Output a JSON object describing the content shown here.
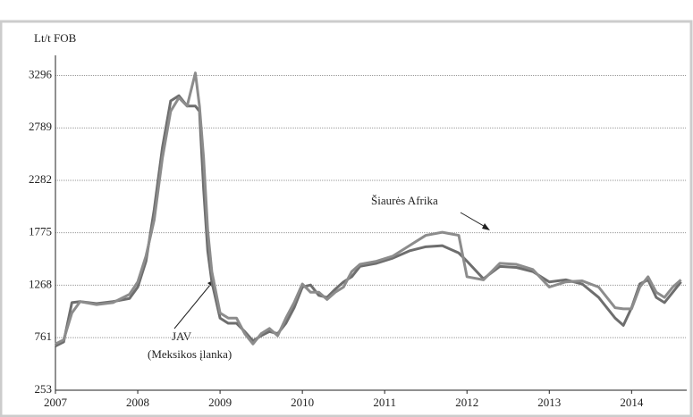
{
  "chart_data": {
    "type": "line",
    "y_label": "Lt/t FOB",
    "x": [
      2007.0,
      2007.1,
      2007.2,
      2007.3,
      2007.5,
      2007.7,
      2007.9,
      2008.0,
      2008.1,
      2008.2,
      2008.3,
      2008.4,
      2008.5,
      2008.6,
      2008.7,
      2008.75,
      2008.8,
      2008.85,
      2008.9,
      2009.0,
      2009.1,
      2009.2,
      2009.3,
      2009.4,
      2009.5,
      2009.6,
      2009.7,
      2009.8,
      2009.9,
      2010.0,
      2010.1,
      2010.2,
      2010.3,
      2010.4,
      2010.5,
      2010.6,
      2010.7,
      2010.9,
      2011.1,
      2011.3,
      2011.5,
      2011.7,
      2011.9,
      2012.0,
      2012.2,
      2012.4,
      2012.6,
      2012.8,
      2013.0,
      2013.2,
      2013.4,
      2013.6,
      2013.8,
      2013.9,
      2014.0,
      2014.1,
      2014.2,
      2014.3,
      2014.4,
      2014.5,
      2014.6
    ],
    "series": [
      {
        "color": "#6e6e6e",
        "values": [
          680,
          720,
          1100,
          1110,
          1090,
          1110,
          1140,
          1250,
          1500,
          2000,
          2600,
          3050,
          3100,
          3000,
          3000,
          2950,
          2200,
          1600,
          1300,
          950,
          900,
          900,
          820,
          730,
          780,
          820,
          800,
          900,
          1050,
          1250,
          1270,
          1170,
          1150,
          1230,
          1300,
          1350,
          1450,
          1480,
          1530,
          1600,
          1640,
          1650,
          1580,
          1500,
          1330,
          1450,
          1440,
          1400,
          1300,
          1320,
          1280,
          1150,
          950,
          880,
          1050,
          1280,
          1320,
          1150,
          1100,
          1200,
          1300
        ]
      },
      {
        "color": "#8c8c8c",
        "values": [
          700,
          740,
          1000,
          1110,
          1080,
          1100,
          1180,
          1300,
          1550,
          1900,
          2500,
          2950,
          3080,
          3000,
          3320,
          3000,
          2500,
          1800,
          1400,
          1000,
          950,
          950,
          800,
          700,
          800,
          850,
          780,
          950,
          1100,
          1280,
          1200,
          1200,
          1130,
          1200,
          1250,
          1400,
          1470,
          1500,
          1550,
          1650,
          1750,
          1780,
          1750,
          1350,
          1320,
          1480,
          1470,
          1420,
          1250,
          1300,
          1310,
          1250,
          1050,
          1040,
          1040,
          1250,
          1350,
          1200,
          1150,
          1250,
          1320
        ]
      }
    ],
    "annotations": [
      "JAV",
      "(Meksikos įlanka)",
      "Šiaurės Afrika"
    ],
    "xlim": [
      2007,
      2014.67
    ],
    "xticks": [
      2007,
      2008,
      2009,
      2010,
      2011,
      2012,
      2013,
      2014
    ],
    "ylim": [
      253,
      3490
    ],
    "yticks": [
      253,
      761,
      1268,
      1775,
      2282,
      2789,
      3296
    ],
    "grid": true
  }
}
